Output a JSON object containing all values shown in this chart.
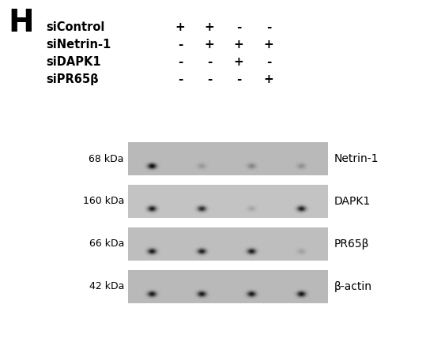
{
  "title_letter": "H",
  "background_color": "#ffffff",
  "labels_left": [
    "siControl",
    "siNetrin-1",
    "siDAPK1",
    "siPR65β"
  ],
  "symbols": [
    [
      "+",
      "+",
      "-",
      "-"
    ],
    [
      "-",
      "+",
      "+",
      "+"
    ],
    [
      "-",
      "-",
      "+",
      "-"
    ],
    [
      "-",
      "-",
      "-",
      "+"
    ]
  ],
  "bands": [
    {
      "kda": "68 kDa",
      "label": "Netrin-1",
      "lane_intensities": [
        0.95,
        0.18,
        0.28,
        0.22
      ],
      "panel_bg": 185
    },
    {
      "kda": "160 kDa",
      "label": "DAPK1",
      "lane_intensities": [
        0.9,
        0.82,
        0.15,
        0.88
      ],
      "panel_bg": 195
    },
    {
      "kda": "66 kDa",
      "label": "PR65β",
      "lane_intensities": [
        0.88,
        0.85,
        0.87,
        0.15
      ],
      "panel_bg": 190
    },
    {
      "kda": "42 kDa",
      "label": "β-actin",
      "lane_intensities": [
        0.88,
        0.88,
        0.88,
        0.9
      ],
      "panel_bg": 185
    }
  ],
  "figsize": [
    5.39,
    4.28
  ],
  "dpi": 100
}
